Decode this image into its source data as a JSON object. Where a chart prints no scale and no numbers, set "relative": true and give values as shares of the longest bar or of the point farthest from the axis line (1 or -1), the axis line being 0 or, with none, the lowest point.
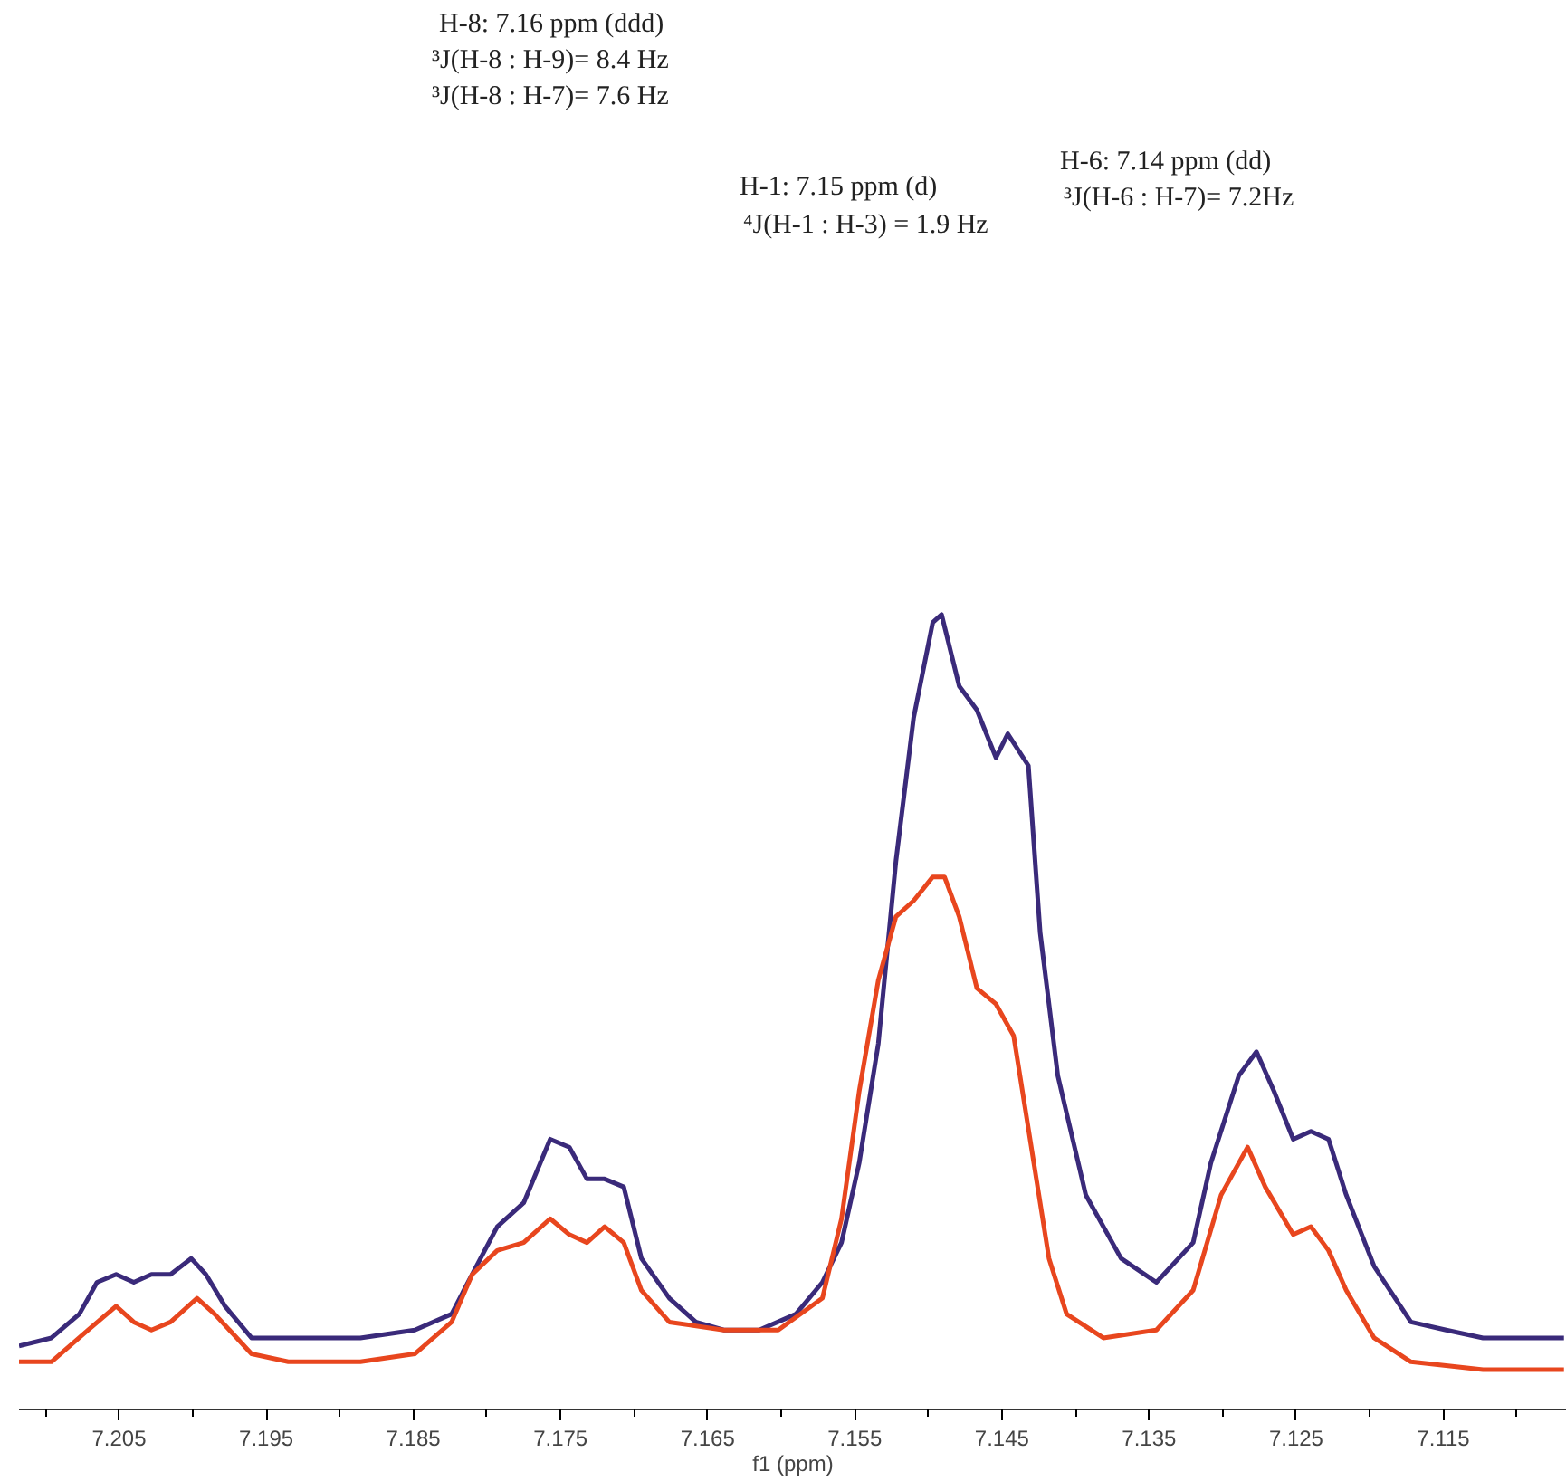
{
  "chart_data": {
    "type": "line",
    "relative": true,
    "xlabel": "f1 (ppm)",
    "annotations": [
      "H-8: 7.16 ppm  (ddd)",
      "³J(H-8 : H-9)= 8.4 Hz",
      "³J(H-8 : H-7)= 7.6 Hz",
      "H-1: 7.15 ppm (d)",
      "⁴J(H-1 : H-3) = 1.9 Hz",
      "H-6: 7.14 ppm (dd)",
      "³J(H-6 : H-7)= 7.2Hz"
    ],
    "xlim": [
      7.2118,
      7.1066
    ],
    "xticks": [
      7.205,
      7.195,
      7.185,
      7.175,
      7.165,
      7.155,
      7.145,
      7.135,
      7.125,
      7.115
    ],
    "series": [
      {
        "color": "#3a2a7a",
        "x": [
          7.2118,
          7.2096,
          7.2077,
          7.2065,
          7.2052,
          7.204,
          7.2028,
          7.2015,
          7.2001,
          7.1991,
          7.1978,
          7.196,
          7.1935,
          7.1886,
          7.1849,
          7.1824,
          7.181,
          7.1793,
          7.1775,
          7.1757,
          7.1744,
          7.1732,
          7.172,
          7.1707,
          7.1695,
          7.1676,
          7.1658,
          7.1639,
          7.1615,
          7.159,
          7.1572,
          7.1559,
          7.1547,
          7.1534,
          7.1522,
          7.151,
          7.1497,
          7.1491,
          7.1479,
          7.1467,
          7.1454,
          7.1446,
          7.1432,
          7.1424,
          7.1412,
          7.1393,
          7.1369,
          7.1345,
          7.132,
          7.1308,
          7.1289,
          7.1277,
          7.1265,
          7.1252,
          7.124,
          7.1228,
          7.1216,
          7.1197,
          7.1172,
          7.1148,
          7.1123,
          7.1099,
          7.1068
        ],
        "values": [
          0.08,
          0.09,
          0.12,
          0.16,
          0.17,
          0.16,
          0.17,
          0.17,
          0.19,
          0.17,
          0.13,
          0.09,
          0.09,
          0.09,
          0.1,
          0.12,
          0.17,
          0.23,
          0.26,
          0.34,
          0.33,
          0.29,
          0.29,
          0.28,
          0.19,
          0.14,
          0.11,
          0.1,
          0.1,
          0.12,
          0.16,
          0.21,
          0.31,
          0.46,
          0.69,
          0.87,
          0.99,
          1,
          0.91,
          0.88,
          0.82,
          0.85,
          0.81,
          0.6,
          0.42,
          0.27,
          0.19,
          0.16,
          0.21,
          0.31,
          0.42,
          0.45,
          0.4,
          0.34,
          0.35,
          0.34,
          0.27,
          0.18,
          0.11,
          0.1,
          0.09,
          0.09,
          0.09
        ]
      },
      {
        "color": "#e8461e",
        "x": [
          7.2118,
          7.2096,
          7.2071,
          7.2052,
          7.204,
          7.2028,
          7.2015,
          7.1997,
          7.1985,
          7.196,
          7.1935,
          7.1886,
          7.1849,
          7.1824,
          7.181,
          7.1793,
          7.1775,
          7.1757,
          7.1744,
          7.1732,
          7.172,
          7.1707,
          7.1695,
          7.1676,
          7.1639,
          7.1602,
          7.1572,
          7.1559,
          7.1547,
          7.1534,
          7.1522,
          7.151,
          7.1497,
          7.1489,
          7.1479,
          7.1467,
          7.1454,
          7.1442,
          7.143,
          7.1418,
          7.1406,
          7.1381,
          7.1345,
          7.132,
          7.1301,
          7.1283,
          7.1271,
          7.1252,
          7.124,
          7.1228,
          7.1216,
          7.1197,
          7.1172,
          7.1123,
          7.1068
        ],
        "values": [
          0.06,
          0.06,
          0.1,
          0.13,
          0.11,
          0.1,
          0.11,
          0.14,
          0.12,
          0.07,
          0.06,
          0.06,
          0.07,
          0.11,
          0.17,
          0.2,
          0.21,
          0.24,
          0.22,
          0.21,
          0.23,
          0.21,
          0.15,
          0.11,
          0.1,
          0.1,
          0.14,
          0.24,
          0.4,
          0.54,
          0.62,
          0.64,
          0.67,
          0.67,
          0.62,
          0.53,
          0.51,
          0.47,
          0.33,
          0.19,
          0.12,
          0.09,
          0.1,
          0.15,
          0.27,
          0.33,
          0.28,
          0.22,
          0.23,
          0.2,
          0.15,
          0.09,
          0.06,
          0.05,
          0.05
        ]
      }
    ]
  }
}
